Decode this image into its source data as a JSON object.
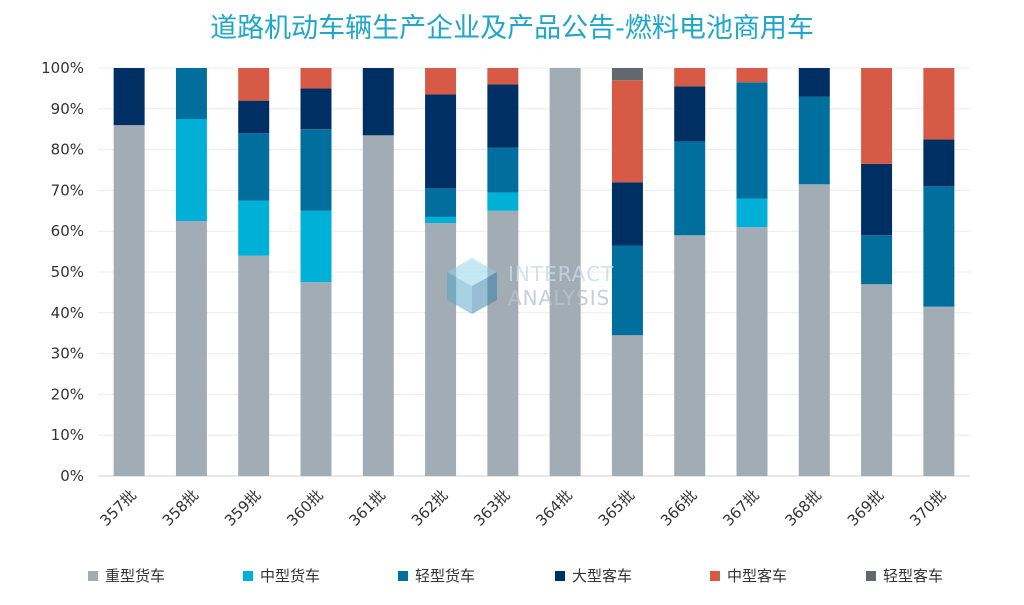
{
  "chart_data": {
    "type": "bar",
    "stacked": true,
    "percent": true,
    "title": "道路机动车辆生产企业及产品公告-燃料电池商用车",
    "categories": [
      "357批",
      "358批",
      "359批",
      "360批",
      "361批",
      "362批",
      "363批",
      "364批",
      "365批",
      "366批",
      "367批",
      "368批",
      "369批",
      "370批"
    ],
    "ylim": [
      0,
      100
    ],
    "yticks": [
      "0%",
      "10%",
      "20%",
      "30%",
      "40%",
      "50%",
      "60%",
      "70%",
      "80%",
      "90%",
      "100%"
    ],
    "series": [
      {
        "name": "重型货车",
        "color": "#a2acb4",
        "values": [
          86,
          62.5,
          54,
          47.5,
          83.5,
          62,
          65,
          100,
          34.5,
          59,
          61,
          71.5,
          47,
          41.5
        ]
      },
      {
        "name": "中型货车",
        "color": "#00b0d6",
        "values": [
          0,
          25,
          13.5,
          17.5,
          0,
          1.5,
          4.5,
          0,
          0,
          0,
          7,
          0,
          0,
          0
        ]
      },
      {
        "name": "轻型货车",
        "color": "#006f9e",
        "values": [
          0,
          12.5,
          16.5,
          20,
          0,
          7,
          11,
          0,
          22,
          23,
          28.5,
          21.5,
          12,
          29.5
        ]
      },
      {
        "name": "大型客车",
        "color": "#003063",
        "values": [
          14,
          0,
          8,
          10,
          16.5,
          23,
          15.5,
          0,
          15.5,
          13.5,
          0,
          7,
          17.5,
          11.5
        ]
      },
      {
        "name": "中型客车",
        "color": "#d65a45",
        "values": [
          0,
          0,
          8,
          5,
          0,
          6.5,
          4,
          0,
          25,
          4.5,
          3.5,
          0,
          23.5,
          17.5
        ]
      },
      {
        "name": "轻型客车",
        "color": "#62686d",
        "values": [
          0,
          0,
          0,
          0,
          0,
          0,
          0,
          0,
          3,
          0,
          0,
          0,
          0,
          0
        ]
      }
    ],
    "legend_position": "bottom",
    "grid": true
  },
  "watermark": {
    "line1": "INTERACT",
    "line2": "ANALYSIS",
    "color": "#8fb4cc"
  }
}
